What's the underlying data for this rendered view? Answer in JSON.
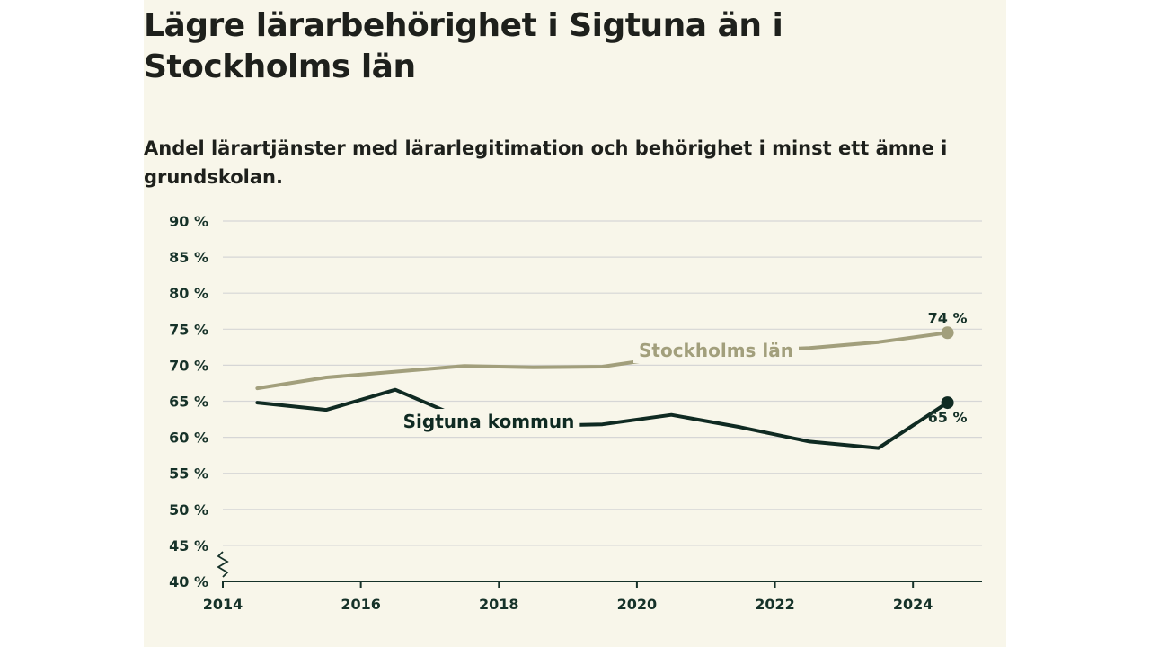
{
  "title": "Lägre lärarbehörighet i Sigtuna än i Stockholms län",
  "subtitle": "Andel lärartjänster med lärarlegitimation och behörighet i minst ett ämne i grundskolan.",
  "chart_data": {
    "type": "line",
    "title": "Lägre lärarbehörighet i Sigtuna än i Stockholms län",
    "subtitle": "Andel lärartjänster med lärarlegitimation och behörighet i minst ett ämne i grundskolan.",
    "xlim": [
      2014,
      2025
    ],
    "ylim": [
      40,
      90
    ],
    "x_ticks": [
      2014,
      2016,
      2018,
      2020,
      2022,
      2024
    ],
    "x_tick_labels": [
      "2014",
      "2016",
      "2018",
      "2020",
      "2022",
      "2024"
    ],
    "y_ticks": [
      40,
      45,
      50,
      55,
      60,
      65,
      70,
      75,
      80,
      85,
      90
    ],
    "y_tick_labels": [
      "40 %",
      "45 %",
      "50 %",
      "55 %",
      "60 %",
      "65 %",
      "70 %",
      "75 %",
      "80 %",
      "85 %",
      "90 %"
    ],
    "grid": true,
    "axis_break": true,
    "series": [
      {
        "name": "Stockholms län",
        "color": "#a29f7c",
        "x": [
          2014.5,
          2015.5,
          2016.5,
          2017.5,
          2018.5,
          2019.5,
          2020.5,
          2021.5,
          2022.5,
          2023.5,
          2024.5
        ],
        "y": [
          66.8,
          68.3,
          69.1,
          69.9,
          69.7,
          69.8,
          71.2,
          72.0,
          72.4,
          73.2,
          74.5
        ],
        "end_label": "74 %"
      },
      {
        "name": "Sigtuna kommun",
        "color": "#0f2a22",
        "x": [
          2014.5,
          2015.5,
          2016.5,
          2017.5,
          2018.5,
          2019.5,
          2020.5,
          2021.5,
          2022.5,
          2023.5,
          2024.5
        ],
        "y": [
          64.8,
          63.8,
          66.6,
          62.5,
          61.6,
          61.8,
          63.1,
          61.4,
          59.4,
          58.5,
          64.8
        ],
        "end_label": "65 %"
      }
    ]
  }
}
